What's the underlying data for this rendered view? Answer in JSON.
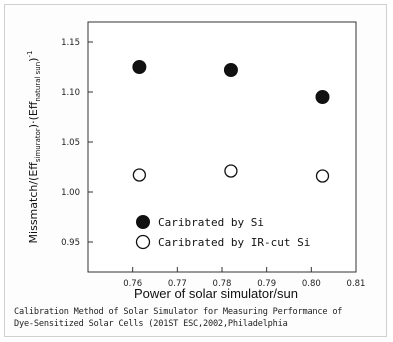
{
  "chart_data": {
    "type": "scatter",
    "title": "",
    "xlabel": "Power of solar simulator/sun",
    "ylabel_parts": {
      "pre": "Missmatch/(Eff",
      "sub1": "simurator",
      "mid": ")·(Eff",
      "sub2": "natural sun",
      "post": ")",
      "sup": "-1"
    },
    "xlim": [
      0.75,
      0.81
    ],
    "ylim": [
      0.92,
      1.17
    ],
    "x_ticks": [
      "0.76",
      "0.77",
      "0.78",
      "0.79",
      "0.80",
      "0.81"
    ],
    "x_tick_values": [
      0.76,
      0.77,
      0.78,
      0.79,
      0.8,
      0.81
    ],
    "y_ticks": [
      "0.95",
      "1.00",
      "1.05",
      "1.10",
      "1.15"
    ],
    "y_tick_values": [
      0.95,
      1.0,
      1.05,
      1.1,
      1.15
    ],
    "grid": false,
    "legend_position": "bottom-left",
    "series": [
      {
        "name": "Caribrated by Si",
        "marker": "filled-circle",
        "color": "#111111",
        "points": [
          [
            0.7615,
            1.125
          ],
          [
            0.782,
            1.122
          ],
          [
            0.8025,
            1.095
          ]
        ]
      },
      {
        "name": "Caribrated by IR-cut Si",
        "marker": "open-circle",
        "color": "#111111",
        "points": [
          [
            0.7615,
            1.017
          ],
          [
            0.782,
            1.021
          ],
          [
            0.8025,
            1.016
          ]
        ]
      }
    ]
  },
  "caption": {
    "line1": "Calibration Method of Solar Simulator for Measuring Performance of",
    "line2": "Dye-Sensitized Solar Cells (201ST ESC,2002,Philadelphia"
  }
}
